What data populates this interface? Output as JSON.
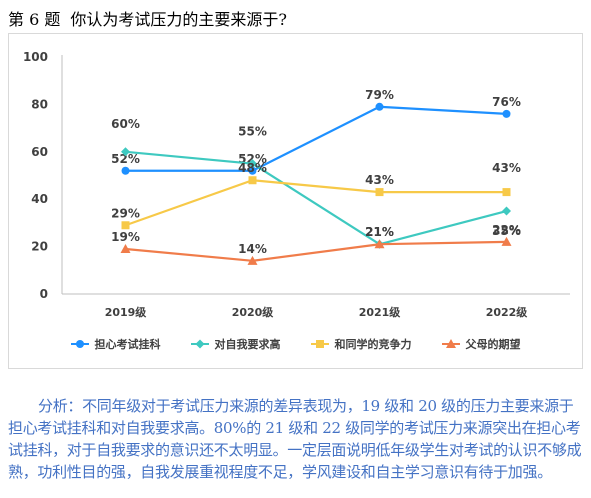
{
  "question": {
    "number": "第 6 题",
    "text": "你认为考试压力的主要来源于?"
  },
  "chart_data": {
    "type": "line",
    "categories": [
      "2019级",
      "2020级",
      "2021级",
      "2022级"
    ],
    "ylim": [
      0,
      100
    ],
    "yticks": [
      0,
      20,
      40,
      60,
      80,
      100
    ],
    "grid": false,
    "legend_position": "bottom",
    "series": [
      {
        "name": "担心考试挂科",
        "values": [
          52,
          52,
          79,
          76
        ],
        "labels": [
          "52%",
          "52%",
          "79%",
          "76%"
        ],
        "color": "#1e90ff",
        "marker": "circle"
      },
      {
        "name": "对自我要求高",
        "values": [
          60,
          55,
          21,
          35
        ],
        "labels": [
          "60%",
          "55%",
          "21%",
          "35%"
        ],
        "color": "#3ec9c0",
        "marker": "diamond"
      },
      {
        "name": "和同学的竞争力",
        "values": [
          29,
          48,
          43,
          43
        ],
        "labels": [
          "29%",
          "48%",
          "43%",
          "43%"
        ],
        "color": "#f7c948",
        "marker": "square"
      },
      {
        "name": "父母的期望",
        "values": [
          19,
          14,
          21,
          22
        ],
        "labels": [
          "19%",
          "14%",
          "21%",
          "22%"
        ],
        "color": "#f07c4a",
        "marker": "triangle"
      }
    ]
  },
  "analysis": "分析：不同年级对于考试压力来源的差异表现为，19 级和 20 级的压力主要来源于担心考试挂科和对自我要求高。80%的 21 级和 22 级同学的考试压力来源突出在担心考试挂科，对于自我要求的意识还不太明显。一定层面说明低年级学生对考试的认识不够成熟，功利性目的强，自我发展重视程度不足，学风建设和自主学习意识有待于加强。"
}
